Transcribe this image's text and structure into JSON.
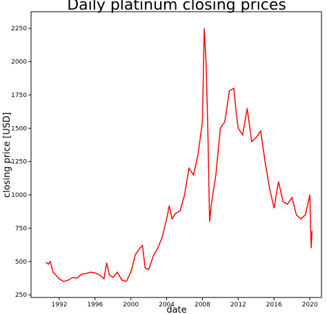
{
  "chart_data": {
    "type": "line",
    "title": "Daily platinum closing prices",
    "x_label": "date",
    "y_label": "closing price [USD]",
    "x": [
      1990.5,
      1990.8,
      1991.0,
      1991.3,
      1991.6,
      1992.0,
      1992.5,
      1993.0,
      1993.5,
      1994.0,
      1994.5,
      1995.0,
      1995.5,
      1996.0,
      1996.5,
      1997.0,
      1997.3,
      1997.6,
      1998.0,
      1998.5,
      1999.0,
      1999.5,
      2000.0,
      2000.5,
      2001.0,
      2001.3,
      2001.6,
      2002.0,
      2002.5,
      2003.0,
      2003.5,
      2004.0,
      2004.3,
      2004.6,
      2005.0,
      2005.5,
      2006.0,
      2006.5,
      2007.0,
      2007.5,
      2008.0,
      2008.2,
      2008.4,
      2008.6,
      2008.8,
      2009.0,
      2009.5,
      2010.0,
      2010.5,
      2011.0,
      2011.5,
      2011.8,
      2012.0,
      2012.5,
      2013.0,
      2013.5,
      2014.0,
      2014.5,
      2015.0,
      2015.5,
      2016.0,
      2016.5,
      2017.0,
      2017.5,
      2018.0,
      2018.5,
      2019.0,
      2019.5,
      2020.0,
      2020.15,
      2020.25
    ],
    "series": [
      {
        "name": "closing price",
        "color": "#ff0000",
        "values": [
          495,
          480,
          500,
          420,
          400,
          370,
          350,
          360,
          380,
          375,
          405,
          410,
          420,
          415,
          400,
          370,
          490,
          400,
          380,
          420,
          360,
          350,
          420,
          550,
          600,
          620,
          450,
          440,
          540,
          600,
          680,
          820,
          920,
          820,
          860,
          880,
          1000,
          1200,
          1150,
          1300,
          1550,
          2250,
          2000,
          1500,
          800,
          930,
          1150,
          1500,
          1550,
          1780,
          1800,
          1600,
          1500,
          1450,
          1650,
          1400,
          1430,
          1480,
          1250,
          1050,
          900,
          1100,
          950,
          930,
          980,
          850,
          820,
          850,
          1000,
          600,
          730
        ]
      }
    ],
    "xlim": [
      1988.85,
      2021.3
    ],
    "ylim": [
      230,
      2375
    ],
    "xticks": [
      1992,
      1996,
      2000,
      2004,
      2008,
      2012,
      2016,
      2020
    ],
    "yticks": [
      250,
      500,
      750,
      1000,
      1250,
      1500,
      1750,
      2000,
      2250
    ]
  }
}
